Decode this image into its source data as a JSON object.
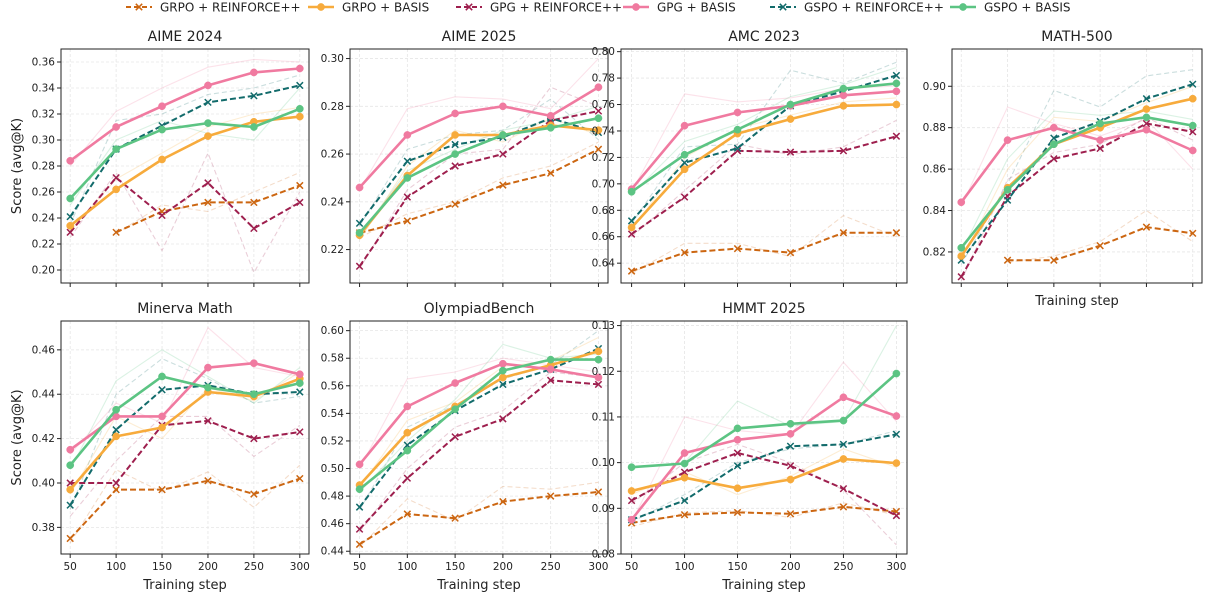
{
  "legend": [
    {
      "name": "GRPO + REINFORCE++",
      "color": "#cc6611",
      "style": "dashed",
      "marker": "x"
    },
    {
      "name": "GRPO + BASIS",
      "color": "#f7ab3c",
      "style": "solid",
      "marker": "o"
    },
    {
      "name": "GPG + REINFORCE++",
      "color": "#9e1f4e",
      "style": "dashed",
      "marker": "x"
    },
    {
      "name": "GPG + BASIS",
      "color": "#f07aa0",
      "style": "solid",
      "marker": "o"
    },
    {
      "name": "GSPO + REINFORCE++",
      "color": "#126b6b",
      "style": "dashed",
      "marker": "x"
    },
    {
      "name": "GSPO + BASIS",
      "color": "#5cc483",
      "style": "solid",
      "marker": "o"
    }
  ],
  "chart_data": [
    {
      "type": "line",
      "title": "AIME 2024",
      "ylabel": "Score (avg@K)",
      "xlabel": "",
      "x": [
        50,
        100,
        150,
        200,
        250,
        300
      ],
      "ylim": [
        0.19,
        0.37
      ],
      "yticks": [
        0.2,
        0.22,
        0.24,
        0.26,
        0.28,
        0.3,
        0.32,
        0.34,
        0.36
      ],
      "ydecimals": 2,
      "series": [
        {
          "name": "GRPO + REINFORCE++",
          "values": [
            null,
            0.229,
            0.245,
            0.252,
            0.252,
            0.265
          ],
          "raw": [
            null,
            0.228,
            0.25,
            0.245,
            0.26,
            0.275
          ]
        },
        {
          "name": "GRPO + BASIS",
          "values": [
            0.234,
            0.262,
            0.285,
            0.303,
            0.314,
            0.318
          ],
          "raw": [
            0.23,
            0.27,
            0.29,
            0.31,
            0.32,
            0.325
          ]
        },
        {
          "name": "GPG + REINFORCE++",
          "values": [
            0.229,
            0.271,
            0.242,
            0.267,
            0.232,
            0.252
          ],
          "raw": [
            0.225,
            0.275,
            0.215,
            0.29,
            0.198,
            0.26
          ]
        },
        {
          "name": "GPG + BASIS",
          "values": [
            0.284,
            0.31,
            0.326,
            0.342,
            0.352,
            0.355
          ],
          "raw": [
            0.28,
            0.322,
            0.34,
            0.356,
            0.362,
            0.36
          ]
        },
        {
          "name": "GSPO + REINFORCE++",
          "values": [
            0.241,
            0.293,
            0.311,
            0.329,
            0.334,
            0.342
          ],
          "raw": [
            0.235,
            0.315,
            0.32,
            0.335,
            0.34,
            0.35
          ]
        },
        {
          "name": "GSPO + BASIS",
          "values": [
            0.255,
            0.293,
            0.308,
            0.313,
            0.31,
            0.324
          ],
          "raw": [
            0.25,
            0.3,
            0.315,
            0.305,
            0.3,
            0.34
          ]
        }
      ]
    },
    {
      "type": "line",
      "title": "AIME 2025",
      "ylabel": "",
      "xlabel": "",
      "x": [
        50,
        100,
        150,
        200,
        250,
        300
      ],
      "ylim": [
        0.206,
        0.304
      ],
      "yticks": [
        0.22,
        0.24,
        0.26,
        0.28,
        0.3
      ],
      "ydecimals": 2,
      "series": [
        {
          "name": "GRPO + REINFORCE++",
          "values": [
            0.227,
            0.232,
            0.239,
            0.247,
            0.252,
            0.262
          ],
          "raw": [
            0.225,
            0.235,
            0.24,
            0.25,
            0.255,
            0.265
          ]
        },
        {
          "name": "GRPO + BASIS",
          "values": [
            0.226,
            0.251,
            0.268,
            0.268,
            0.272,
            0.27
          ],
          "raw": [
            0.224,
            0.255,
            0.27,
            0.265,
            0.275,
            0.268
          ]
        },
        {
          "name": "GPG + REINFORCE++",
          "values": [
            0.213,
            0.242,
            0.255,
            0.26,
            0.274,
            0.278
          ],
          "raw": [
            0.212,
            0.245,
            0.26,
            0.262,
            0.288,
            0.28
          ]
        },
        {
          "name": "GPG + BASIS",
          "values": [
            0.246,
            0.268,
            0.277,
            0.28,
            0.276,
            0.288
          ],
          "raw": [
            0.245,
            0.279,
            0.284,
            0.283,
            0.279,
            0.3
          ]
        },
        {
          "name": "GSPO + REINFORCE++",
          "values": [
            0.231,
            0.257,
            0.264,
            0.267,
            0.275,
            0.269
          ],
          "raw": [
            0.23,
            0.262,
            0.268,
            0.27,
            0.283,
            0.266
          ]
        },
        {
          "name": "GSPO + BASIS",
          "values": [
            0.227,
            0.25,
            0.26,
            0.268,
            0.271,
            0.275
          ],
          "raw": [
            0.226,
            0.253,
            0.262,
            0.27,
            0.274,
            0.28
          ]
        }
      ]
    },
    {
      "type": "line",
      "title": "AMC 2023",
      "ylabel": "",
      "xlabel": "",
      "x": [
        50,
        100,
        150,
        200,
        250,
        300
      ],
      "ylim": [
        0.625,
        0.802
      ],
      "yticks": [
        0.64,
        0.66,
        0.68,
        0.7,
        0.72,
        0.74,
        0.76,
        0.78,
        0.8
      ],
      "ydecimals": 2,
      "series": [
        {
          "name": "GRPO + REINFORCE++",
          "values": [
            0.634,
            0.648,
            0.651,
            0.648,
            0.663,
            0.663
          ],
          "raw": [
            0.632,
            0.655,
            0.655,
            0.645,
            0.676,
            0.66
          ]
        },
        {
          "name": "GRPO + BASIS",
          "values": [
            0.667,
            0.711,
            0.738,
            0.749,
            0.759,
            0.76
          ],
          "raw": [
            0.665,
            0.72,
            0.742,
            0.752,
            0.762,
            0.765
          ]
        },
        {
          "name": "GPG + REINFORCE++",
          "values": [
            0.662,
            0.69,
            0.725,
            0.724,
            0.725,
            0.736
          ],
          "raw": [
            0.66,
            0.695,
            0.73,
            0.722,
            0.728,
            0.748
          ]
        },
        {
          "name": "GPG + BASIS",
          "values": [
            0.696,
            0.744,
            0.754,
            0.759,
            0.767,
            0.77
          ],
          "raw": [
            0.694,
            0.768,
            0.762,
            0.765,
            0.772,
            0.774
          ]
        },
        {
          "name": "GSPO + REINFORCE++",
          "values": [
            0.672,
            0.716,
            0.727,
            0.759,
            0.77,
            0.782
          ],
          "raw": [
            0.67,
            0.728,
            0.73,
            0.786,
            0.776,
            0.792
          ]
        },
        {
          "name": "GSPO + BASIS",
          "values": [
            0.694,
            0.722,
            0.741,
            0.76,
            0.772,
            0.776
          ],
          "raw": [
            0.692,
            0.732,
            0.745,
            0.766,
            0.775,
            0.788
          ]
        }
      ]
    },
    {
      "type": "line",
      "title": "MATH-500",
      "ylabel": "",
      "xlabel": "Training step",
      "x": [
        50,
        100,
        150,
        200,
        250,
        300
      ],
      "ylim": [
        0.805,
        0.918
      ],
      "yticks": [
        0.82,
        0.84,
        0.86,
        0.88,
        0.9
      ],
      "ydecimals": 2,
      "series": [
        {
          "name": "GRPO + REINFORCE++",
          "values": [
            null,
            0.816,
            0.816,
            0.823,
            0.832,
            0.829
          ],
          "raw": [
            null,
            0.815,
            0.818,
            0.825,
            0.84,
            0.825
          ]
        },
        {
          "name": "GRPO + BASIS",
          "values": [
            0.818,
            0.851,
            0.872,
            0.88,
            0.889,
            0.894
          ],
          "raw": [
            0.816,
            0.86,
            0.885,
            0.883,
            0.892,
            0.9
          ]
        },
        {
          "name": "GPG + REINFORCE++",
          "values": [
            0.808,
            0.847,
            0.865,
            0.87,
            0.882,
            0.878
          ],
          "raw": [
            0.806,
            0.855,
            0.868,
            0.872,
            0.885,
            0.874
          ]
        },
        {
          "name": "GPG + BASIS",
          "values": [
            0.844,
            0.874,
            0.88,
            0.874,
            0.879,
            0.869
          ],
          "raw": [
            0.842,
            0.89,
            0.882,
            0.876,
            0.884,
            0.86
          ]
        },
        {
          "name": "GSPO + REINFORCE++",
          "values": [
            0.816,
            0.845,
            0.875,
            0.883,
            0.894,
            0.901
          ],
          "raw": [
            0.814,
            0.853,
            0.898,
            0.89,
            0.905,
            0.908
          ]
        },
        {
          "name": "GSPO + BASIS",
          "values": [
            0.822,
            0.85,
            0.872,
            0.882,
            0.885,
            0.881
          ],
          "raw": [
            0.82,
            0.865,
            0.888,
            0.886,
            0.888,
            0.884
          ]
        }
      ]
    },
    {
      "type": "line",
      "title": "Minerva Math",
      "ylabel": "Score (avg@K)",
      "xlabel": "Training step",
      "x": [
        50,
        100,
        150,
        200,
        250,
        300
      ],
      "ylim": [
        0.368,
        0.473
      ],
      "yticks": [
        0.38,
        0.4,
        0.42,
        0.44,
        0.46
      ],
      "ydecimals": 2,
      "series": [
        {
          "name": "GRPO + REINFORCE++",
          "values": [
            0.375,
            0.397,
            0.397,
            0.401,
            0.395,
            0.402
          ],
          "raw": [
            0.373,
            0.406,
            0.396,
            0.405,
            0.389,
            0.408
          ]
        },
        {
          "name": "GRPO + BASIS",
          "values": [
            0.397,
            0.421,
            0.425,
            0.441,
            0.439,
            0.447
          ],
          "raw": [
            0.395,
            0.43,
            0.42,
            0.443,
            0.437,
            0.45
          ]
        },
        {
          "name": "GPG + REINFORCE++",
          "values": [
            0.4,
            0.4,
            0.426,
            0.428,
            0.42,
            0.423
          ],
          "raw": [
            0.385,
            0.41,
            0.43,
            0.43,
            0.412,
            0.426
          ]
        },
        {
          "name": "GPG + BASIS",
          "values": [
            0.415,
            0.43,
            0.43,
            0.452,
            0.454,
            0.449
          ],
          "raw": [
            0.413,
            0.436,
            0.427,
            0.47,
            0.452,
            0.448
          ]
        },
        {
          "name": "GSPO + REINFORCE++",
          "values": [
            0.39,
            0.424,
            0.442,
            0.444,
            0.44,
            0.441
          ],
          "raw": [
            0.388,
            0.44,
            0.456,
            0.447,
            0.436,
            0.439
          ]
        },
        {
          "name": "GSPO + BASIS",
          "values": [
            0.408,
            0.433,
            0.448,
            0.443,
            0.44,
            0.445
          ],
          "raw": [
            0.406,
            0.446,
            0.46,
            0.448,
            0.436,
            0.452
          ]
        }
      ]
    },
    {
      "type": "line",
      "title": "OlympiadBench",
      "ylabel": "",
      "xlabel": "Training step",
      "x": [
        50,
        100,
        150,
        200,
        250,
        300
      ],
      "ylim": [
        0.438,
        0.607
      ],
      "yticks": [
        0.44,
        0.46,
        0.48,
        0.5,
        0.52,
        0.54,
        0.56,
        0.58,
        0.6
      ],
      "ydecimals": 2,
      "series": [
        {
          "name": "GRPO + REINFORCE++",
          "values": [
            0.445,
            0.467,
            0.464,
            0.476,
            0.48,
            0.483
          ],
          "raw": [
            0.443,
            0.478,
            0.462,
            0.487,
            0.485,
            0.49
          ]
        },
        {
          "name": "GRPO + BASIS",
          "values": [
            0.488,
            0.526,
            0.545,
            0.566,
            0.575,
            0.585
          ],
          "raw": [
            0.486,
            0.535,
            0.548,
            0.574,
            0.578,
            0.595
          ]
        },
        {
          "name": "GPG + REINFORCE++",
          "values": [
            0.456,
            0.493,
            0.523,
            0.536,
            0.564,
            0.561
          ],
          "raw": [
            0.454,
            0.5,
            0.53,
            0.542,
            0.57,
            0.566
          ]
        },
        {
          "name": "GPG + BASIS",
          "values": [
            0.503,
            0.545,
            0.562,
            0.576,
            0.572,
            0.566
          ],
          "raw": [
            0.5,
            0.565,
            0.57,
            0.58,
            0.575,
            0.57
          ]
        },
        {
          "name": "GSPO + REINFORCE++",
          "values": [
            0.472,
            0.517,
            0.542,
            0.561,
            0.572,
            0.587
          ],
          "raw": [
            0.47,
            0.53,
            0.546,
            0.565,
            0.575,
            0.6
          ]
        },
        {
          "name": "GSPO + BASIS",
          "values": [
            0.485,
            0.513,
            0.543,
            0.571,
            0.579,
            0.579
          ],
          "raw": [
            0.483,
            0.52,
            0.55,
            0.59,
            0.58,
            0.583
          ]
        }
      ]
    },
    {
      "type": "line",
      "title": "HMMT 2025",
      "ylabel": "",
      "xlabel": "Training step",
      "x": [
        50,
        100,
        150,
        200,
        250,
        300
      ],
      "ylim": [
        0.08,
        0.131
      ],
      "yticks": [
        0.08,
        0.09,
        0.1,
        0.11,
        0.12,
        0.13
      ],
      "ydecimals": 2,
      "series": [
        {
          "name": "GRPO + REINFORCE++",
          "values": [
            0.0868,
            0.0886,
            0.0891,
            0.0888,
            0.0903,
            0.0893
          ],
          "raw": [
            0.086,
            0.089,
            0.0895,
            0.088,
            0.0912,
            0.0885
          ]
        },
        {
          "name": "GRPO + BASIS",
          "values": [
            0.0938,
            0.0967,
            0.0944,
            0.0963,
            0.1008,
            0.0999
          ],
          "raw": [
            0.093,
            0.098,
            0.093,
            0.097,
            0.103,
            0.099
          ]
        },
        {
          "name": "GPG + REINFORCE++",
          "values": [
            0.0917,
            0.0979,
            0.1021,
            0.0993,
            0.0943,
            0.0884
          ],
          "raw": [
            0.091,
            0.1,
            0.104,
            0.1,
            0.094,
            0.082
          ]
        },
        {
          "name": "GPG + BASIS",
          "values": [
            0.0875,
            0.1021,
            0.105,
            0.1063,
            0.1143,
            0.1102
          ],
          "raw": [
            0.087,
            0.11,
            0.107,
            0.106,
            0.122,
            0.109
          ]
        },
        {
          "name": "GSPO + REINFORCE++",
          "values": [
            0.0875,
            0.0917,
            0.0993,
            0.1036,
            0.104,
            0.1062
          ],
          "raw": [
            0.087,
            0.093,
            0.1,
            0.103,
            0.104,
            0.107
          ]
        },
        {
          "name": "GSPO + BASIS",
          "values": [
            0.099,
            0.0998,
            0.1075,
            0.1085,
            0.1092,
            0.1195
          ],
          "raw": [
            0.099,
            0.1,
            0.1135,
            0.108,
            0.109,
            0.13
          ]
        }
      ]
    }
  ]
}
